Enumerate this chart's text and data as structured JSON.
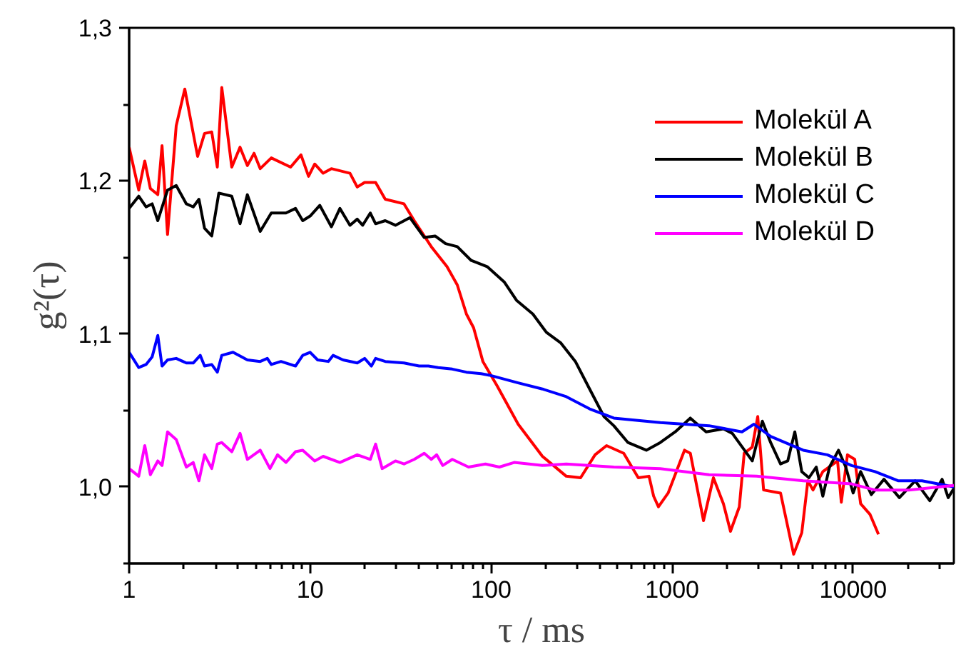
{
  "chart_data": {
    "type": "line",
    "xlabel": "τ / ms",
    "ylabel": "g²(τ)",
    "log": "x",
    "xlim": [
      1,
      36000
    ],
    "ylim": [
      0.95,
      1.3
    ],
    "xticks": [
      1,
      10,
      100,
      1000,
      10000
    ],
    "yticks": [
      {
        "value": 0.95,
        "label": null
      },
      {
        "value": 1.0,
        "label": "1,0"
      },
      {
        "value": 1.05,
        "label": null
      },
      {
        "value": 1.1,
        "label": "1,1"
      },
      {
        "value": 1.15,
        "label": null
      },
      {
        "value": 1.2,
        "label": "1,2"
      },
      {
        "value": 1.25,
        "label": null
      },
      {
        "value": 1.3,
        "label": "1,3"
      }
    ],
    "grid": false,
    "legend": "top right",
    "marker": "none",
    "line_style": "solid",
    "series": [
      {
        "name": "Molekül A",
        "color": "#ff0000",
        "x": [
          1,
          1.13,
          1.22,
          1.31,
          1.44,
          1.52,
          1.63,
          1.82,
          2.03,
          2.39,
          2.61,
          2.86,
          3.07,
          3.25,
          3.69,
          4.1,
          4.5,
          4.9,
          5.3,
          6.1,
          7.8,
          8.9,
          9.8,
          10.6,
          11.8,
          13.1,
          16.6,
          18.2,
          20,
          23,
          26,
          33,
          37.6,
          46.7,
          57,
          65,
          73,
          80,
          90,
          108,
          141,
          192,
          260,
          312,
          375,
          434,
          540,
          650,
          745,
          790,
          840,
          950,
          1170,
          1260,
          1490,
          1690,
          1920,
          2100,
          2350,
          2500,
          2770,
          2970,
          3200,
          3970,
          4690,
          5200,
          5620,
          6000,
          6800,
          8200,
          8600,
          9300,
          10200,
          11000,
          12400,
          13800
        ],
        "values": [
          1.222,
          1.194,
          1.213,
          1.195,
          1.191,
          1.223,
          1.165,
          1.236,
          1.26,
          1.216,
          1.231,
          1.232,
          1.209,
          1.261,
          1.209,
          1.222,
          1.21,
          1.218,
          1.208,
          1.215,
          1.209,
          1.217,
          1.203,
          1.211,
          1.205,
          1.208,
          1.205,
          1.196,
          1.199,
          1.199,
          1.188,
          1.185,
          1.174,
          1.157,
          1.144,
          1.132,
          1.113,
          1.104,
          1.082,
          1.066,
          1.041,
          1.02,
          1.007,
          1.006,
          1.021,
          1.027,
          1.022,
          1.006,
          1.007,
          0.994,
          0.987,
          0.996,
          1.024,
          1.022,
          0.978,
          1.006,
          0.989,
          0.971,
          0.987,
          1.022,
          1.026,
          1.046,
          0.998,
          0.996,
          0.956,
          0.97,
          1.004,
          0.998,
          1.01,
          1.017,
          0.99,
          1.021,
          1.018,
          0.989,
          0.982,
          0.969
        ]
      },
      {
        "name": "Molekül B",
        "color": "#000000",
        "x": [
          1,
          1.13,
          1.24,
          1.34,
          1.44,
          1.63,
          1.82,
          2.07,
          2.26,
          2.43,
          2.61,
          2.86,
          3.13,
          3.69,
          4.1,
          4.5,
          5.3,
          6.1,
          7.35,
          8.3,
          9.1,
          10,
          11.3,
          13.1,
          14.6,
          16.6,
          18.2,
          19.5,
          21.5,
          23,
          26,
          29.6,
          35.6,
          42.7,
          49,
          56,
          65,
          77.6,
          95,
          118,
          138,
          170,
          202,
          243,
          292,
          350,
          420,
          476,
          570,
          720,
          860,
          1040,
          1260,
          1540,
          1920,
          2150,
          2770,
          3150,
          3500,
          3970,
          4350,
          4760,
          5200,
          5700,
          6250,
          6800,
          7400,
          8300,
          9100,
          10000,
          11000,
          12600,
          14800,
          18000,
          22000,
          26500,
          31000,
          33500,
          36000
        ],
        "values": [
          1.182,
          1.19,
          1.183,
          1.185,
          1.174,
          1.194,
          1.197,
          1.185,
          1.183,
          1.188,
          1.169,
          1.164,
          1.192,
          1.19,
          1.172,
          1.191,
          1.167,
          1.179,
          1.179,
          1.182,
          1.174,
          1.177,
          1.184,
          1.17,
          1.182,
          1.171,
          1.175,
          1.171,
          1.179,
          1.172,
          1.174,
          1.171,
          1.176,
          1.163,
          1.164,
          1.159,
          1.157,
          1.148,
          1.144,
          1.134,
          1.122,
          1.113,
          1.101,
          1.094,
          1.082,
          1.064,
          1.046,
          1.04,
          1.029,
          1.024,
          1.029,
          1.036,
          1.045,
          1.036,
          1.038,
          1.035,
          1.017,
          1.043,
          1.029,
          1.015,
          1.017,
          1.036,
          1.01,
          1.006,
          1.013,
          0.994,
          1.013,
          1.024,
          1.013,
          0.996,
          1.01,
          0.995,
          1.005,
          0.993,
          1.004,
          0.991,
          1.005,
          0.993,
          0.999
        ]
      },
      {
        "name": "Molekül C",
        "color": "#0000ff",
        "x": [
          1,
          1.13,
          1.24,
          1.34,
          1.44,
          1.52,
          1.63,
          1.82,
          2.07,
          2.26,
          2.47,
          2.61,
          2.86,
          3.07,
          3.25,
          3.75,
          4.5,
          5.3,
          5.8,
          6.1,
          6.9,
          8.3,
          9.1,
          10,
          11,
          12.6,
          13.4,
          15.2,
          18.2,
          20,
          21.8,
          23,
          26,
          33,
          40,
          45,
          51,
          61,
          73,
          88,
          98,
          141,
          192,
          260,
          350,
          476,
          860,
          1600,
          2430,
          2830,
          3500,
          5300,
          7200,
          9800,
          13200,
          17800,
          24000,
          36000
        ],
        "values": [
          1.088,
          1.078,
          1.08,
          1.085,
          1.099,
          1.079,
          1.083,
          1.084,
          1.081,
          1.081,
          1.086,
          1.079,
          1.08,
          1.075,
          1.086,
          1.088,
          1.083,
          1.082,
          1.084,
          1.08,
          1.082,
          1.079,
          1.086,
          1.088,
          1.083,
          1.082,
          1.086,
          1.083,
          1.081,
          1.084,
          1.079,
          1.084,
          1.082,
          1.081,
          1.079,
          1.079,
          1.078,
          1.077,
          1.075,
          1.074,
          1.073,
          1.068,
          1.064,
          1.059,
          1.051,
          1.045,
          1.042,
          1.04,
          1.036,
          1.041,
          1.033,
          1.024,
          1.021,
          1.014,
          1.01,
          1.004,
          1.004,
          1.0
        ]
      },
      {
        "name": "Molekül D",
        "color": "#ff00ff",
        "x": [
          1,
          1.13,
          1.22,
          1.31,
          1.44,
          1.52,
          1.63,
          1.82,
          2.07,
          2.26,
          2.43,
          2.61,
          2.86,
          3.07,
          3.25,
          3.69,
          4.1,
          4.5,
          5.3,
          6,
          6.6,
          7.35,
          8.3,
          9.1,
          10.6,
          11.8,
          14.6,
          18.2,
          21.5,
          23,
          25,
          29.6,
          33,
          37.6,
          42.7,
          46.7,
          50,
          54,
          61,
          75,
          93,
          111,
          134,
          192,
          260,
          476,
          860,
          1600,
          2930,
          5300,
          9800,
          13200,
          20300,
          36000
        ],
        "values": [
          1.012,
          1.007,
          1.027,
          1.008,
          1.017,
          1.014,
          1.036,
          1.031,
          1.013,
          1.016,
          1.004,
          1.021,
          1.012,
          1.028,
          1.029,
          1.023,
          1.035,
          1.018,
          1.024,
          1.012,
          1.021,
          1.016,
          1.023,
          1.024,
          1.017,
          1.02,
          1.016,
          1.021,
          1.018,
          1.028,
          1.012,
          1.017,
          1.015,
          1.018,
          1.022,
          1.018,
          1.021,
          1.014,
          1.018,
          1.013,
          1.015,
          1.013,
          1.016,
          1.014,
          1.015,
          1.013,
          1.012,
          1.008,
          1.007,
          1.004,
          1.002,
          0.998,
          0.998,
          1.001
        ]
      }
    ]
  }
}
